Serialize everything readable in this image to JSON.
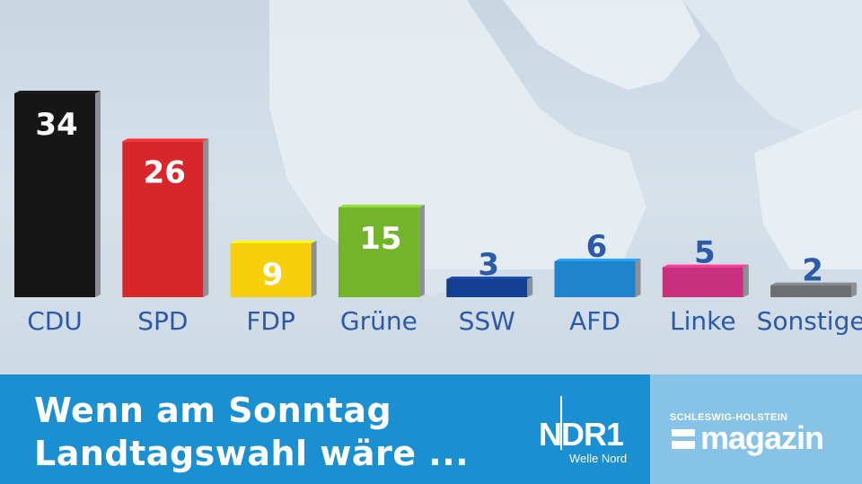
{
  "chart_data": {
    "type": "bar",
    "categories": [
      "CDU",
      "SPD",
      "FDP",
      "Grüne",
      "SSW",
      "AFD",
      "Linke",
      "Sonstige"
    ],
    "values": [
      34,
      26,
      9,
      15,
      3,
      6,
      5,
      2
    ],
    "colors": [
      "#161616",
      "#d9262b",
      "#f7cf0a",
      "#73b42b",
      "#123f8f",
      "#1f84cc",
      "#c8307e",
      "#6c6e72"
    ],
    "label_colors": [
      "#ffffff",
      "#ffffff",
      "#ffffff",
      "#ffffff",
      "#2a5aa8",
      "#2a5aa8",
      "#2a5aa8",
      "#2a5aa8"
    ],
    "category_label_color": "#2a5aa8",
    "ylim": [
      0,
      34
    ],
    "xlabel": "",
    "ylabel": "",
    "grid": false,
    "bar_3d": true
  },
  "footer": {
    "headline_line1": "Wenn am Sonntag",
    "headline_line2": "Landtagswahl wäre ...",
    "station_logo": "NDR1",
    "station_sub": "Welle Nord",
    "magazine_top": "SCHLESWIG-HOLSTEIN",
    "magazine_name": "magazin"
  },
  "colors": {
    "footer_blue": "#1a8fd1",
    "footer_light_blue": "#86c3e6"
  }
}
